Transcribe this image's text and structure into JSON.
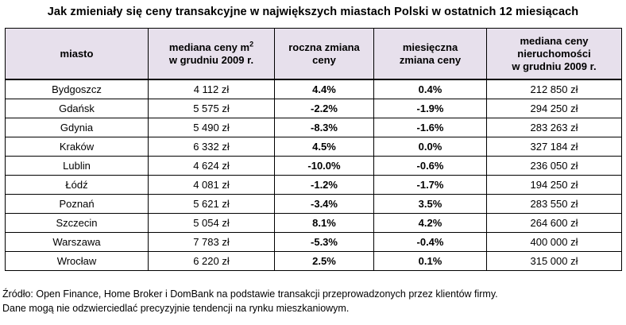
{
  "title": "Jak zmieniały się ceny transakcyjne w największych miastach Polski w ostatnich 12 miesiącach",
  "headers": {
    "city": "miasto",
    "median_m2_line1": "mediana ceny m",
    "median_m2_sup": "2",
    "median_m2_line2": "w grudniu 2009 r.",
    "annual_line1": "roczna zmiana",
    "annual_line2": "ceny",
    "monthly_line1": "miesięczna",
    "monthly_line2": "zmiana ceny",
    "median_prop_line1": "mediana ceny",
    "median_prop_line2": "nieruchomości",
    "median_prop_line3": "w grudniu 2009 r."
  },
  "rows": [
    {
      "city": "Bydgoszcz",
      "m2": "4 112 zł",
      "annual": "4.4%",
      "monthly": "0.4%",
      "property": "212 850 zł"
    },
    {
      "city": "Gdańsk",
      "m2": "5 575 zł",
      "annual": "-2.2%",
      "monthly": "-1.9%",
      "property": "294 250 zł"
    },
    {
      "city": "Gdynia",
      "m2": "5 490 zł",
      "annual": "-8.3%",
      "monthly": "-1.6%",
      "property": "283 263 zł"
    },
    {
      "city": "Kraków",
      "m2": "6 332 zł",
      "annual": "4.5%",
      "monthly": "0.0%",
      "property": "327 184 zł"
    },
    {
      "city": "Lublin",
      "m2": "4 624 zł",
      "annual": "-10.0%",
      "monthly": "-0.6%",
      "property": "236 050 zł"
    },
    {
      "city": "Łódź",
      "m2": "4 081 zł",
      "annual": "-1.2%",
      "monthly": "-1.7%",
      "property": "194 250 zł"
    },
    {
      "city": "Poznań",
      "m2": "5 621 zł",
      "annual": "-3.4%",
      "monthly": "3.5%",
      "property": "283 550 zł"
    },
    {
      "city": "Szczecin",
      "m2": "5 054 zł",
      "annual": "8.1%",
      "monthly": "4.2%",
      "property": "264 600 zł"
    },
    {
      "city": "Warszawa",
      "m2": "7 783 zł",
      "annual": "-5.3%",
      "monthly": "-0.4%",
      "property": "400 000 zł"
    },
    {
      "city": "Wrocław",
      "m2": "6 220 zł",
      "annual": "2.5%",
      "monthly": "0.1%",
      "property": "315 000 zł"
    }
  ],
  "notes": {
    "source": "Źródło: Open Finance, Home Broker i DomBank na podstawie transakcji przeprowadzonych przez klientów firmy.",
    "disclaimer": "Dane mogą nie odzwierciedlać precyzyjnie tendencji na rynku mieszkaniowym."
  },
  "colors": {
    "header_bg": "#e7e0ec",
    "border": "#000000"
  }
}
